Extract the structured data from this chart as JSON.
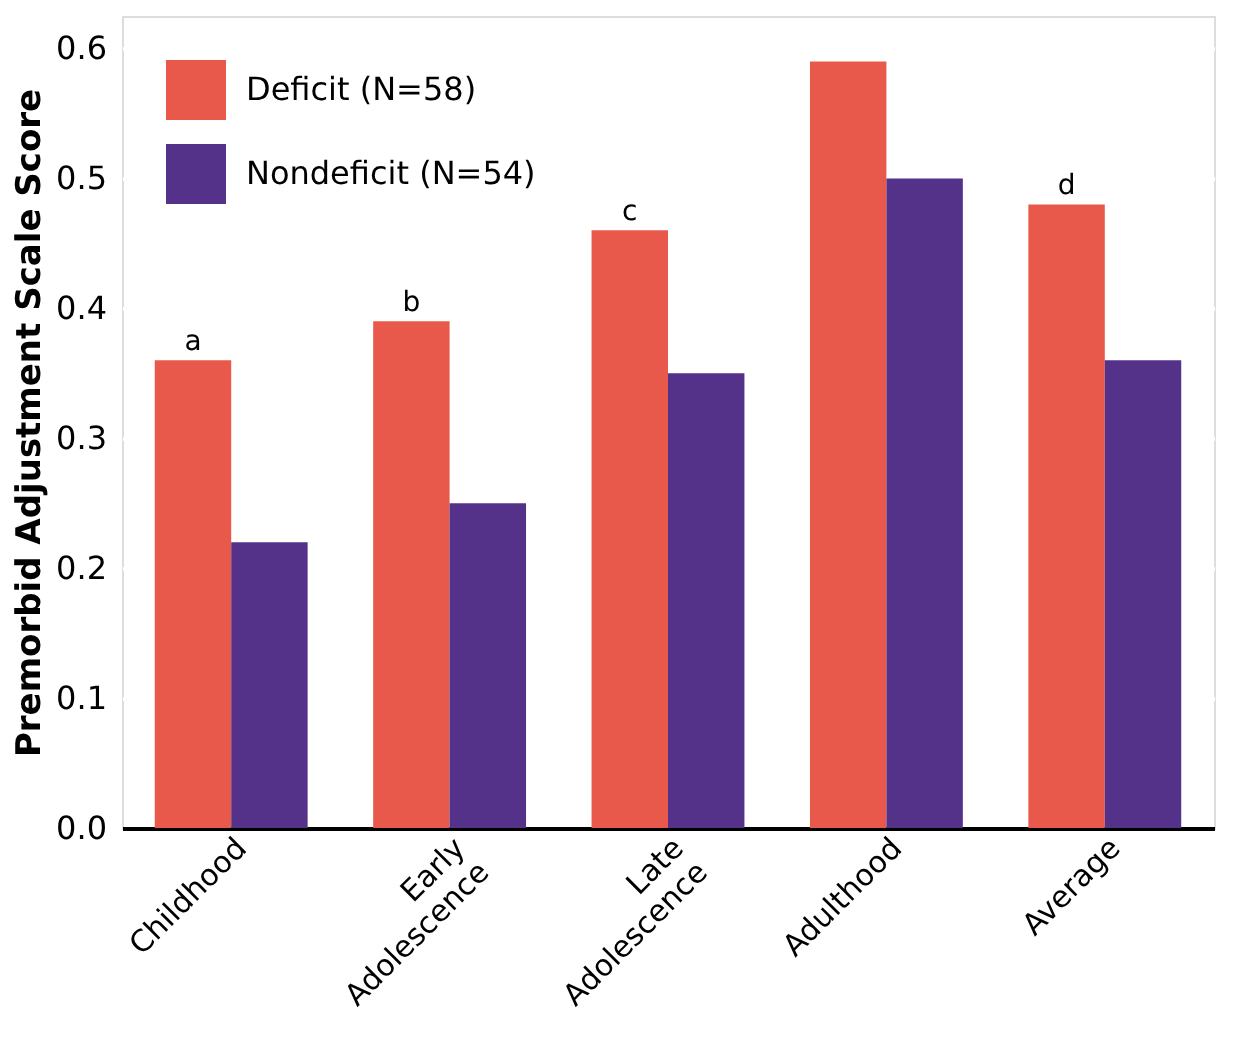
{
  "chart_data": {
    "type": "bar",
    "ylabel": "Premorbid Adjustment Scale Score",
    "categories": [
      "Childhood",
      "Early Adolescence",
      "Late Adolescence",
      "Adulthood",
      "Average"
    ],
    "series": [
      {
        "name": "Deficit (N=58)",
        "color": "#e8594c",
        "values": [
          0.36,
          0.39,
          0.46,
          0.59,
          0.48
        ]
      },
      {
        "name": "Nondeficit (N=54)",
        "color": "#55328a",
        "values": [
          0.22,
          0.25,
          0.35,
          0.5,
          0.36
        ]
      }
    ],
    "ylim": [
      0,
      0.625
    ],
    "yticks": [
      {
        "value": 0,
        "label": "0.0"
      },
      {
        "value": 0.1,
        "label": "0.1"
      },
      {
        "value": 0.2,
        "label": "0.2"
      },
      {
        "value": 0.3,
        "label": "0.3"
      },
      {
        "value": 0.4,
        "label": "0.4"
      },
      {
        "value": 0.5,
        "label": "0.5"
      },
      {
        "value": 0.6,
        "label": "0.6"
      }
    ],
    "grid": "y",
    "legend": "top left",
    "annotations": [
      {
        "text": "a",
        "x": "Childhood",
        "y": 0.36
      },
      {
        "text": "b",
        "x": "Early Adolescence",
        "y": 0.39
      },
      {
        "text": "c",
        "x": "Late Adolescence",
        "y": 0.46
      },
      {
        "text": "d",
        "x": "Average",
        "y": 0.48
      }
    ]
  }
}
